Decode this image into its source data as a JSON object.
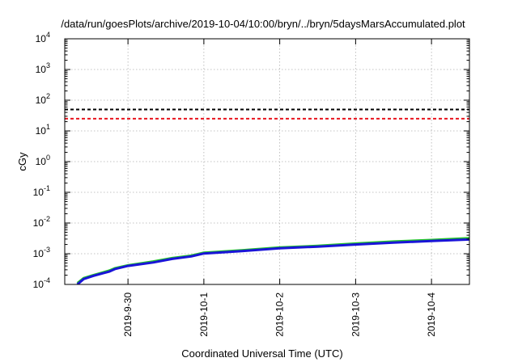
{
  "chart_data": {
    "type": "line",
    "title": "/data/run/goesPlots/archive/2019-10-04/10:00/bryn/../bryn/5daysMarsAccumulated.plot",
    "xlabel": "Coordinated Universal Time (UTC)",
    "ylabel": "cGy",
    "y_scale": "log",
    "ylim": [
      0.0001,
      10000
    ],
    "xlim": [
      "2019-09-29T04:00",
      "2019-10-04T12:00"
    ],
    "grid": true,
    "legend": "none",
    "x_ticks": [
      "2019-9-30",
      "2019-10-1",
      "2019-10-2",
      "2019-10-3",
      "2019-10-4"
    ],
    "x_tick_dates": [
      "2019-09-30T00:00",
      "2019-10-01T00:00",
      "2019-10-02T00:00",
      "2019-10-03T00:00",
      "2019-10-04T00:00"
    ],
    "y_ticks": [
      {
        "base": "10",
        "exp": "-4",
        "value": 0.0001
      },
      {
        "base": "10",
        "exp": "-3",
        "value": 0.001
      },
      {
        "base": "10",
        "exp": "-2",
        "value": 0.01
      },
      {
        "base": "10",
        "exp": "-1",
        "value": 0.1
      },
      {
        "base": "10",
        "exp": "0",
        "value": 1
      },
      {
        "base": "10",
        "exp": "1",
        "value": 10
      },
      {
        "base": "10",
        "exp": "2",
        "value": 100
      },
      {
        "base": "10",
        "exp": "3",
        "value": 1000
      },
      {
        "base": "10",
        "exp": "4",
        "value": 10000
      }
    ],
    "reference_lines": [
      {
        "value": 50,
        "color": "#000000",
        "style": "dashed"
      },
      {
        "value": 25,
        "color": "#e8141e",
        "style": "dashed"
      }
    ],
    "series": [
      {
        "color": "#22c42a",
        "x": [
          "2019-09-29T08:00",
          "2019-09-29T10:00",
          "2019-09-29T13:00",
          "2019-09-29T18:00",
          "2019-09-29T20:00",
          "2019-09-30T00:00",
          "2019-09-30T08:00",
          "2019-09-30T14:00",
          "2019-09-30T20:00",
          "2019-10-01T00:00",
          "2019-10-01T12:00",
          "2019-10-02T00:00",
          "2019-10-02T12:00",
          "2019-10-03T00:00",
          "2019-10-03T12:00",
          "2019-10-04T00:00",
          "2019-10-04T12:00"
        ],
        "values": [
          0.00011,
          0.00016,
          0.0002,
          0.00028,
          0.00034,
          0.00042,
          0.00056,
          0.00072,
          0.00087,
          0.00108,
          0.0013,
          0.0016,
          0.0018,
          0.00215,
          0.0025,
          0.0028,
          0.0032
        ]
      },
      {
        "color": "#1a14d8",
        "x": [
          "2019-09-29T08:00",
          "2019-09-29T10:00",
          "2019-09-29T13:00",
          "2019-09-29T18:00",
          "2019-09-29T20:00",
          "2019-09-30T00:00",
          "2019-09-30T08:00",
          "2019-09-30T14:00",
          "2019-09-30T20:00",
          "2019-10-01T00:00",
          "2019-10-01T12:00",
          "2019-10-02T00:00",
          "2019-10-02T12:00",
          "2019-10-03T00:00",
          "2019-10-03T12:00",
          "2019-10-04T00:00",
          "2019-10-04T12:00"
        ],
        "values": [
          0.0001,
          0.00015,
          0.00019,
          0.00026,
          0.00032,
          0.0004,
          0.00052,
          0.00068,
          0.00082,
          0.00102,
          0.00122,
          0.0015,
          0.0017,
          0.002,
          0.0023,
          0.0026,
          0.0029
        ]
      }
    ]
  }
}
